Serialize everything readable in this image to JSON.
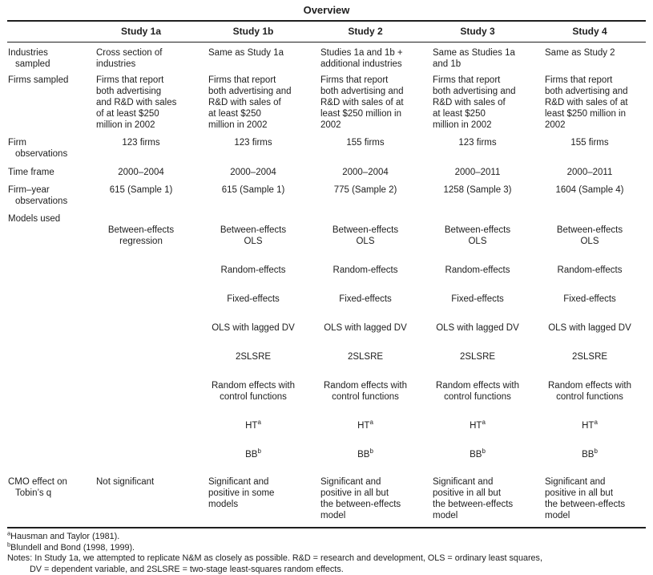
{
  "title": "Overview",
  "columns": [
    "Study 1a",
    "Study 1b",
    "Study 2",
    "Study 3",
    "Study 4"
  ],
  "rows": {
    "industries": {
      "label": "Industries\nsampled",
      "cells": [
        "Cross section of\nindustries",
        "Same as Study 1a",
        "Studies 1a and 1b +\nadditional industries",
        "Same as Studies 1a\nand 1b",
        "Same as Study 2"
      ]
    },
    "firms_sampled": {
      "label": "Firms sampled",
      "cells": [
        "Firms that report\nboth advertising\nand R&D with sales\nof at least $250\nmillion in 2002",
        "Firms that report\nboth advertising and\nR&D with sales of\nat least $250\nmillion in 2002",
        "Firms that report\nboth advertising and\nR&D with sales of at\nleast $250 million in\n2002",
        "Firms that report\nboth advertising and\nR&D with sales of\nat least $250\nmillion in 2002",
        "Firms that report\nboth advertising and\nR&D with sales of at\nleast $250 million in\n2002"
      ]
    },
    "firm_observations": {
      "label": "Firm\nobservations",
      "cells": [
        "123 firms",
        "123 firms",
        "155 firms",
        "123 firms",
        "155 firms"
      ]
    },
    "time_frame": {
      "label": "Time frame",
      "cells": [
        "2000–2004",
        "2000–2004",
        "2000–2004",
        "2000–2011",
        "2000–2011"
      ]
    },
    "firm_year_observations": {
      "label": "Firm–year\nobservations",
      "cells": [
        "615 (Sample 1)",
        "615 (Sample 1)",
        "775 (Sample 2)",
        "1258 (Sample 3)",
        "1604 (Sample 4)"
      ]
    },
    "models_used": {
      "label": "Models used",
      "study1a": [
        {
          "text": "Between-effects\nregression"
        }
      ],
      "study1b": [
        {
          "text": "Between-effects\nOLS"
        },
        {
          "text": "Random-effects"
        },
        {
          "text": "Fixed-effects"
        },
        {
          "text": "OLS with lagged DV"
        },
        {
          "text": "2SLSRE"
        },
        {
          "text": "Random effects with\ncontrol functions"
        },
        {
          "text": "HT",
          "sup": "a"
        },
        {
          "text": "BB",
          "sup": "b"
        }
      ],
      "study2": [
        {
          "text": "Between-effects\nOLS"
        },
        {
          "text": "Random-effects"
        },
        {
          "text": "Fixed-effects"
        },
        {
          "text": "OLS with lagged DV"
        },
        {
          "text": "2SLSRE"
        },
        {
          "text": "Random effects with\ncontrol functions"
        },
        {
          "text": "HT",
          "sup": "a"
        },
        {
          "text": "BB",
          "sup": "b"
        }
      ],
      "study3": [
        {
          "text": "Between-effects\nOLS"
        },
        {
          "text": "Random-effects"
        },
        {
          "text": "Fixed-effects"
        },
        {
          "text": "OLS with lagged DV"
        },
        {
          "text": "2SLSRE"
        },
        {
          "text": "Random effects with\ncontrol functions"
        },
        {
          "text": "HT",
          "sup": "a"
        },
        {
          "text": "BB",
          "sup": "b"
        }
      ],
      "study4": [
        {
          "text": "Between-effects\nOLS"
        },
        {
          "text": "Random-effects"
        },
        {
          "text": "Fixed-effects"
        },
        {
          "text": "OLS with lagged DV"
        },
        {
          "text": "2SLSRE"
        },
        {
          "text": "Random effects with\ncontrol functions"
        },
        {
          "text": "HT",
          "sup": "a"
        },
        {
          "text": "BB",
          "sup": "b"
        }
      ]
    },
    "cmo_effect": {
      "label": "CMO effect on\nTobin’s q",
      "cells": [
        "Not significant",
        "Significant and\npositive in some\nmodels",
        "Significant and\npositive in all but\nthe between-effects\nmodel",
        "Significant and\npositive in all but\nthe between-effects\nmodel",
        "Significant and\npositive in all but\nthe between-effects\nmodel"
      ]
    }
  },
  "footnotes": {
    "a": {
      "sup": "a",
      "text": "Hausman and Taylor (1981)."
    },
    "b": {
      "sup": "b",
      "text": "Blundell and Bond (1998, 1999)."
    },
    "notes": "Notes: In Study 1a, we attempted to replicate N&M as closely as possible. R&D = research and development, OLS = ordinary least squares,\nDV = dependent variable, and 2SLSRE = two-stage least-squares random effects."
  }
}
